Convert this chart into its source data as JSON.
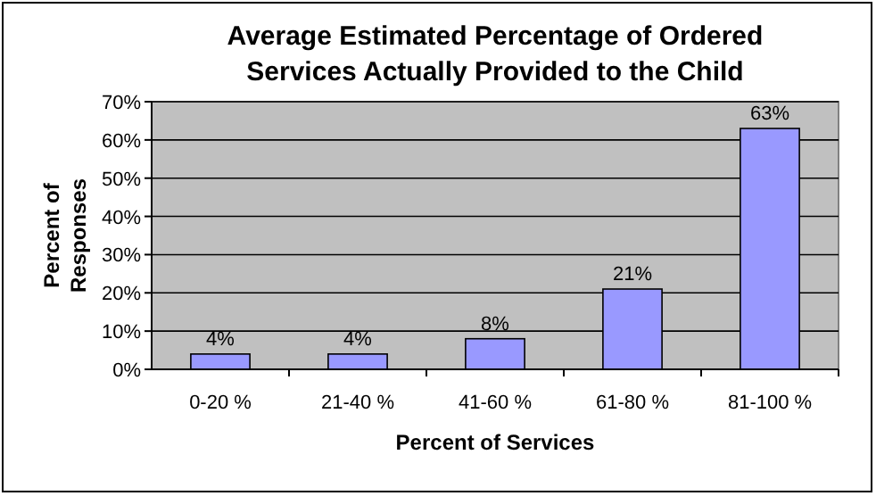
{
  "chart_data": {
    "type": "bar",
    "title": "Average Estimated Percentage of Ordered Services Actually Provided to the Child",
    "xlabel": "Percent of Services",
    "ylabel": "Percent of Responses",
    "categories": [
      "0-20 %",
      "21-40 %",
      "41-60 %",
      "61-80 %",
      "81-100 %"
    ],
    "values": [
      4,
      4,
      8,
      21,
      63
    ],
    "value_labels": [
      "4%",
      "4%",
      "8%",
      "21%",
      "63%"
    ],
    "color": "#9999ff",
    "ylim": [
      0,
      70
    ],
    "yticks": [
      {
        "value": 0,
        "label": "0%"
      },
      {
        "value": 10,
        "label": "10%"
      },
      {
        "value": 20,
        "label": "20%"
      },
      {
        "value": 30,
        "label": "30%"
      },
      {
        "value": 40,
        "label": "40%"
      },
      {
        "value": 50,
        "label": "50%"
      },
      {
        "value": 60,
        "label": "60%"
      },
      {
        "value": 70,
        "label": "70%"
      }
    ],
    "grid": "y"
  }
}
